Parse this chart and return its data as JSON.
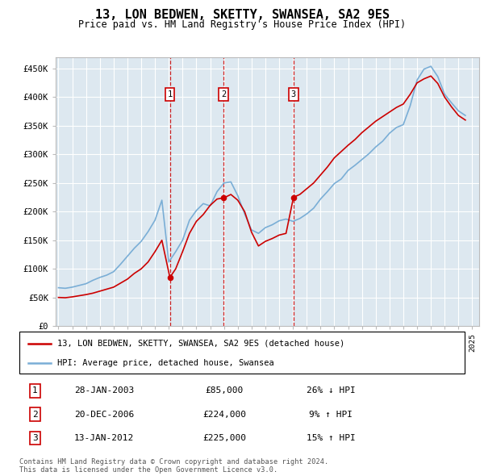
{
  "title": "13, LON BEDWEN, SKETTY, SWANSEA, SA2 9ES",
  "subtitle": "Price paid vs. HM Land Registry's House Price Index (HPI)",
  "ylabel_ticks": [
    "£0",
    "£50K",
    "£100K",
    "£150K",
    "£200K",
    "£250K",
    "£300K",
    "£350K",
    "£400K",
    "£450K"
  ],
  "ytick_values": [
    0,
    50000,
    100000,
    150000,
    200000,
    250000,
    300000,
    350000,
    400000,
    450000
  ],
  "ylim": [
    0,
    470000
  ],
  "xlim_start": 1994.8,
  "xlim_end": 2025.5,
  "background_color": "#dde8f0",
  "red_color": "#cc0000",
  "blue_color": "#7aaed6",
  "legend_red_label": "13, LON BEDWEN, SKETTY, SWANSEA, SA2 9ES (detached house)",
  "legend_blue_label": "HPI: Average price, detached house, Swansea",
  "footer": "Contains HM Land Registry data © Crown copyright and database right 2024.\nThis data is licensed under the Open Government Licence v3.0.",
  "sales": [
    {
      "num": 1,
      "date": "28-JAN-2003",
      "price": 85000,
      "pct": "26%",
      "dir": "↓",
      "year": 2003.08
    },
    {
      "num": 2,
      "date": "20-DEC-2006",
      "price": 224000,
      "pct": "9%",
      "dir": "↑",
      "year": 2006.97
    },
    {
      "num": 3,
      "date": "13-JAN-2012",
      "price": 225000,
      "pct": "15%",
      "dir": "↑",
      "year": 2012.04
    }
  ],
  "hpi_years": [
    1995.0,
    1995.5,
    1996.0,
    1996.5,
    1997.0,
    1997.5,
    1998.0,
    1998.5,
    1999.0,
    1999.5,
    2000.0,
    2000.5,
    2001.0,
    2001.5,
    2002.0,
    2002.5,
    2003.0,
    2003.5,
    2004.0,
    2004.5,
    2005.0,
    2005.5,
    2006.0,
    2006.5,
    2007.0,
    2007.5,
    2008.0,
    2008.5,
    2009.0,
    2009.5,
    2010.0,
    2010.5,
    2011.0,
    2011.5,
    2012.0,
    2012.5,
    2013.0,
    2013.5,
    2014.0,
    2014.5,
    2015.0,
    2015.5,
    2016.0,
    2016.5,
    2017.0,
    2017.5,
    2018.0,
    2018.5,
    2019.0,
    2019.5,
    2020.0,
    2020.5,
    2021.0,
    2021.5,
    2022.0,
    2022.5,
    2023.0,
    2023.5,
    2024.0,
    2024.5
  ],
  "hpi_vals": [
    67000,
    66000,
    68000,
    71000,
    74000,
    80000,
    85000,
    89000,
    95000,
    108000,
    122000,
    136000,
    148000,
    165000,
    185000,
    220000,
    112000,
    130000,
    150000,
    185000,
    202000,
    214000,
    210000,
    235000,
    250000,
    252000,
    228000,
    196000,
    168000,
    162000,
    172000,
    177000,
    184000,
    187000,
    183000,
    188000,
    196000,
    206000,
    222000,
    235000,
    249000,
    257000,
    272000,
    281000,
    291000,
    301000,
    313000,
    323000,
    337000,
    347000,
    352000,
    385000,
    430000,
    449000,
    454000,
    436000,
    405000,
    390000,
    376000,
    368000
  ],
  "red_years": [
    1995.0,
    1995.5,
    1996.0,
    1996.5,
    1997.0,
    1997.5,
    1998.0,
    1998.5,
    1999.0,
    1999.5,
    2000.0,
    2000.5,
    2001.0,
    2001.5,
    2002.0,
    2002.5,
    2003.08,
    2003.5,
    2004.0,
    2004.5,
    2005.0,
    2005.5,
    2006.0,
    2006.5,
    2006.97,
    2007.0,
    2007.5,
    2008.0,
    2008.5,
    2009.0,
    2009.5,
    2010.0,
    2010.5,
    2011.0,
    2011.5,
    2012.04,
    2012.5,
    2013.0,
    2013.5,
    2014.0,
    2014.5,
    2015.0,
    2015.5,
    2016.0,
    2016.5,
    2017.0,
    2017.5,
    2018.0,
    2018.5,
    2019.0,
    2019.5,
    2020.0,
    2020.5,
    2021.0,
    2021.5,
    2022.0,
    2022.5,
    2023.0,
    2023.5,
    2024.0,
    2024.5
  ],
  "red_vals": [
    50000,
    49500,
    51000,
    53000,
    55000,
    57500,
    61000,
    64500,
    68000,
    75000,
    82000,
    92000,
    100000,
    112000,
    130000,
    150000,
    85000,
    100000,
    130000,
    162000,
    183000,
    195000,
    211000,
    222000,
    224000,
    224000,
    230000,
    220000,
    200000,
    164000,
    140000,
    148000,
    153000,
    159000,
    162000,
    225000,
    230000,
    240000,
    250000,
    264000,
    278000,
    294000,
    305000,
    316000,
    326000,
    338000,
    348000,
    358000,
    366000,
    374000,
    382000,
    388000,
    405000,
    425000,
    432000,
    437000,
    424000,
    400000,
    383000,
    368000,
    360000
  ]
}
